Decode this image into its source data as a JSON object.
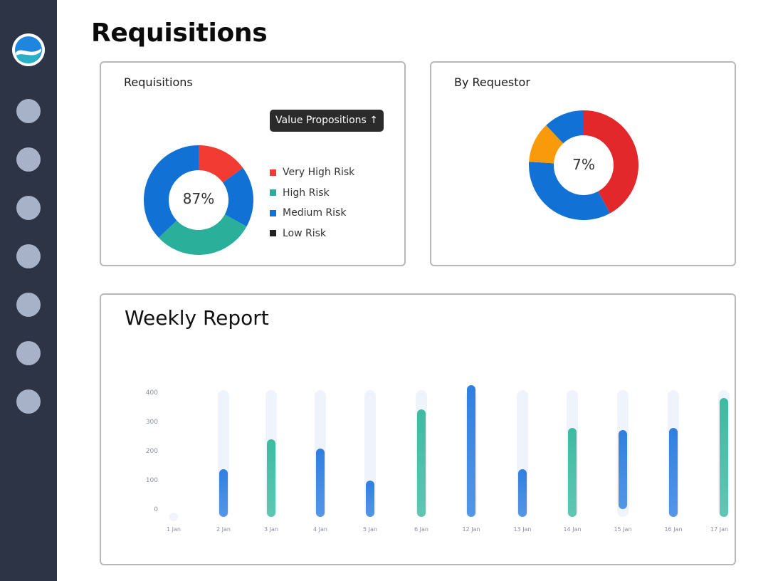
{
  "page_title": "Requisitions",
  "sidebar": {
    "items": [
      "nav-1",
      "nav-2",
      "nav-3",
      "nav-4",
      "nav-5",
      "nav-6",
      "nav-7"
    ]
  },
  "requisitions_card": {
    "title": "Requisitions",
    "center_label": "87%",
    "tooltip_label": "Value Propositions ↑",
    "legend": [
      {
        "label": "Very High Risk",
        "color": "#f23b32"
      },
      {
        "label": "High Risk",
        "color": "#2ab09a"
      },
      {
        "label": "Medium Risk",
        "color": "#1171d4"
      },
      {
        "label": "Low Risk",
        "color": "#222222"
      }
    ],
    "segments": [
      {
        "name": "Very High Risk",
        "value": 15,
        "color": "#f23b32"
      },
      {
        "name": "Medium Risk",
        "value": 18,
        "color": "#1171d4"
      },
      {
        "name": "High Risk",
        "value": 30,
        "color": "#2ab09a"
      },
      {
        "name": "Medium Risk",
        "value": 37,
        "color": "#1171d4"
      }
    ]
  },
  "requestor_card": {
    "title": "By Requestor",
    "center_label": "7%",
    "segments": [
      {
        "value": 42,
        "color": "#e3282b"
      },
      {
        "value": 34,
        "color": "#1171d4"
      },
      {
        "value": 12,
        "color": "#f99a0a"
      },
      {
        "value": 12,
        "color": "#1171d4"
      }
    ]
  },
  "weekly_report": {
    "title": "Weekly Report",
    "y_ticks": [
      "400",
      "300",
      "200",
      "100",
      "0"
    ],
    "x_labels": [
      "1 Jan",
      "2 Jan",
      "3 Jan",
      "4 Jan",
      "5 Jan",
      "6 Jan",
      "12 Jan",
      "13 Jan",
      "14 Jan",
      "15 Jan",
      "16 Jan",
      "17 Jan"
    ]
  },
  "chart_data": {
    "type": "bar",
    "categories": [
      "1 Jan",
      "2 Jan",
      "3 Jan",
      "4 Jan",
      "5 Jan",
      "6 Jan",
      "12 Jan",
      "13 Jan",
      "14 Jan",
      "15 Jan",
      "16 Jan",
      "17 Jan"
    ],
    "values": [
      0,
      150,
      245,
      215,
      115,
      340,
      415,
      150,
      280,
      275,
      280,
      375
    ],
    "base": [
      0,
      0,
      0,
      0,
      0,
      0,
      0,
      0,
      0,
      25,
      0,
      0
    ],
    "colors": [
      "#2f7fe0",
      "#2f7fe0",
      "#3dbba0",
      "#2f7fe0",
      "#2f7fe0",
      "#3dbba0",
      "#2f7fe0",
      "#2f7fe0",
      "#3dbba0",
      "#2f7fe0",
      "#2f7fe0",
      "#3dbba0"
    ],
    "title": "Weekly Report",
    "xlabel": "",
    "ylabel": "",
    "ylim": [
      0,
      400
    ],
    "grid": false
  }
}
